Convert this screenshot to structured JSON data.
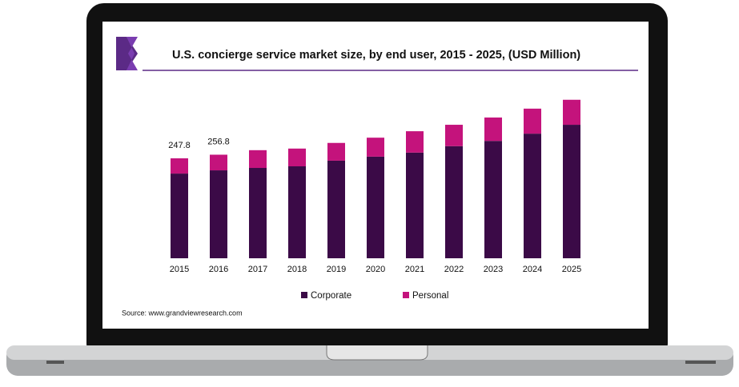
{
  "chart_data": {
    "type": "bar",
    "stacked": true,
    "title": "U.S. concierge service market size, by end user, 2015 - 2025, (USD Million)",
    "categories": [
      "2015",
      "2016",
      "2017",
      "2018",
      "2019",
      "2020",
      "2021",
      "2022",
      "2023",
      "2024",
      "2025"
    ],
    "series": [
      {
        "name": "Corporate",
        "color": "#3b0a47",
        "values": [
          210,
          218,
          224,
          228,
          242,
          252,
          262,
          278,
          291,
          309,
          331
        ]
      },
      {
        "name": "Personal",
        "color": "#c4137c",
        "values": [
          37.8,
          38.8,
          44,
          44,
          44,
          47,
          53,
          53,
          58,
          62,
          62
        ]
      }
    ],
    "total_labels": [
      247.8,
      256.8
    ],
    "source": "Source: www.grandviewresearch.com"
  }
}
